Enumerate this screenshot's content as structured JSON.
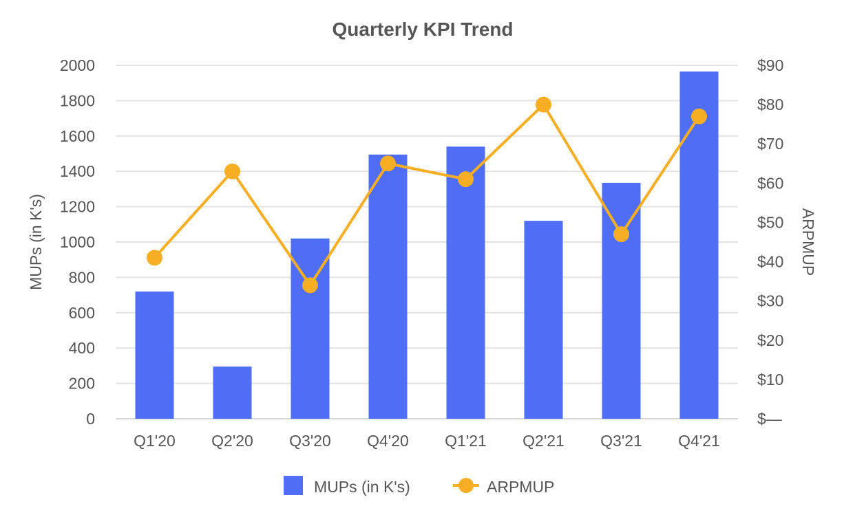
{
  "chart_data": {
    "type": "bar",
    "title": "Quarterly KPI Trend",
    "categories": [
      "Q1'20",
      "Q2'20",
      "Q3'20",
      "Q4'20",
      "Q1'21",
      "Q2'21",
      "Q3'21",
      "Q4'21"
    ],
    "series": [
      {
        "name": "MUPs (in K's)",
        "type": "bar",
        "axis": "left",
        "color": "#4f6ef5",
        "values": [
          720,
          295,
          1020,
          1495,
          1540,
          1120,
          1335,
          1965
        ]
      },
      {
        "name": "ARPMUP",
        "type": "line",
        "axis": "right",
        "color": "#f6ae25",
        "values": [
          41,
          63,
          34,
          65,
          61,
          80,
          47,
          77
        ]
      }
    ],
    "ylabel": "MUPs (in K's)",
    "ylim": [
      0,
      2000
    ],
    "yticks": [
      0,
      200,
      400,
      600,
      800,
      1000,
      1200,
      1400,
      1600,
      1800,
      2000
    ],
    "ytick_labels": [
      "0",
      "200",
      "400",
      "600",
      "800",
      "1000",
      "1200",
      "1400",
      "1600",
      "1800",
      "2000"
    ],
    "y2label": "ARPMUP",
    "y2lim": [
      0,
      90
    ],
    "y2ticks": [
      0,
      10,
      20,
      30,
      40,
      50,
      60,
      70,
      80,
      90
    ],
    "y2tick_labels": [
      "$—",
      "$10",
      "$20",
      "$30",
      "$40",
      "$50",
      "$60",
      "$70",
      "$80",
      "$90"
    ],
    "grid": true,
    "legend_position": "bottom-center",
    "gridline_color": "#e3e3e3",
    "text_color": "#555555"
  }
}
